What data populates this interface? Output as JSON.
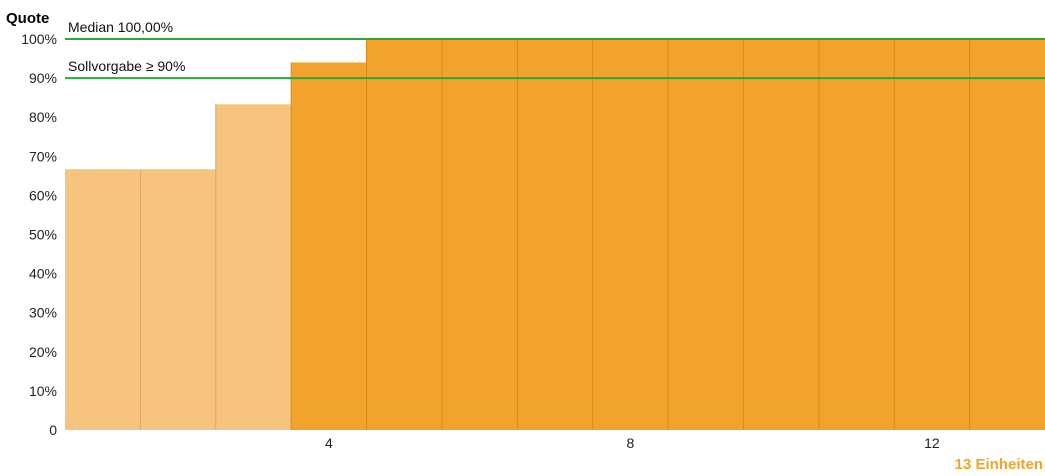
{
  "chart_data": {
    "type": "bar",
    "ylabel": "Quote",
    "ylim": [
      0,
      100
    ],
    "y_ticks": [
      {
        "value": 0,
        "label": "0"
      },
      {
        "value": 10,
        "label": "10%"
      },
      {
        "value": 20,
        "label": "20%"
      },
      {
        "value": 30,
        "label": "30%"
      },
      {
        "value": 40,
        "label": "40%"
      },
      {
        "value": 50,
        "label": "50%"
      },
      {
        "value": 60,
        "label": "60%"
      },
      {
        "value": 70,
        "label": "70%"
      },
      {
        "value": 80,
        "label": "80%"
      },
      {
        "value": 90,
        "label": "90%"
      },
      {
        "value": 100,
        "label": "100%"
      }
    ],
    "x_ticks": [
      {
        "value": 4,
        "label": "4"
      },
      {
        "value": 8,
        "label": "8"
      },
      {
        "value": 12,
        "label": "12"
      }
    ],
    "categories": [
      1,
      2,
      3,
      4,
      5,
      6,
      7,
      8,
      9,
      10,
      11,
      12,
      13
    ],
    "values": [
      66.7,
      66.7,
      83.3,
      94,
      100,
      100,
      100,
      100,
      100,
      100,
      100,
      100,
      100
    ],
    "reference_lines": [
      {
        "value": 100,
        "label": "Median 100,00%",
        "color": "#2ea836"
      },
      {
        "value": 90,
        "label": "Sollvorgabe ≥ 90%",
        "color": "#2ea836"
      }
    ],
    "unit_count_label": "13 Einheiten",
    "colors": {
      "below_target": "#f6c47e",
      "meets_target": "#f2a32b",
      "below_target_divider": "#e0a860",
      "meets_target_divider": "#d98a1c",
      "reference_line": "#2ea836",
      "unit_count": "#f2a32b"
    }
  }
}
